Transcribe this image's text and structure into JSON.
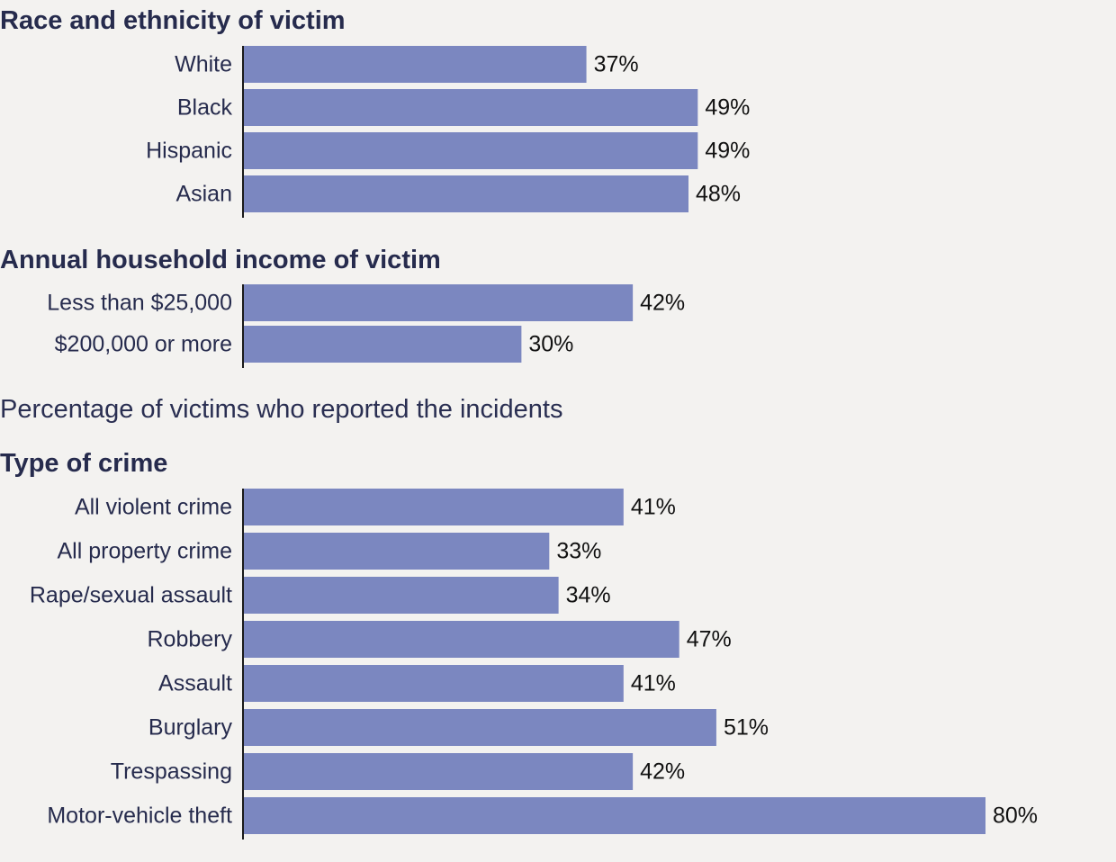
{
  "caption": "Percentage of victims who reported the incidents",
  "colors": {
    "bar": "#7b87c0",
    "background": "#f3f2f0"
  },
  "chart_data": [
    {
      "type": "bar",
      "orientation": "horizontal",
      "title": "Race and ethnicity of victim",
      "categories": [
        "White",
        "Black",
        "Hispanic",
        "Asian"
      ],
      "values": [
        37,
        49,
        49,
        48
      ],
      "value_labels": [
        "37%",
        "49%",
        "49%",
        "48%"
      ],
      "xlim": [
        0,
        80
      ]
    },
    {
      "type": "bar",
      "orientation": "horizontal",
      "title": "Annual household income of victim",
      "categories": [
        "Less than $25,000",
        "$200,000 or more"
      ],
      "values": [
        42,
        30
      ],
      "value_labels": [
        "42%",
        "30%"
      ],
      "xlim": [
        0,
        80
      ]
    },
    {
      "type": "bar",
      "orientation": "horizontal",
      "title": "Type of crime",
      "categories": [
        "All violent crime",
        "All property crime",
        "Rape/sexual assault",
        "Robbery",
        "Assault",
        "Burglary",
        "Trespassing",
        "Motor-vehicle theft"
      ],
      "values": [
        41,
        33,
        34,
        47,
        41,
        51,
        42,
        80
      ],
      "value_labels": [
        "41%",
        "33%",
        "34%",
        "47%",
        "41%",
        "51%",
        "42%",
        "80%"
      ],
      "xlim": [
        0,
        80
      ]
    }
  ]
}
